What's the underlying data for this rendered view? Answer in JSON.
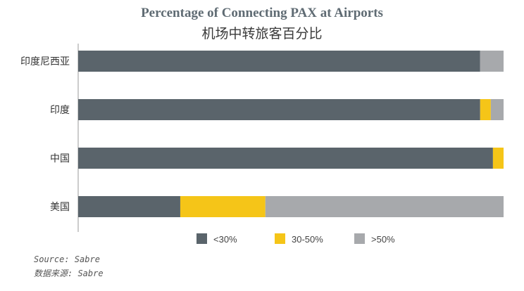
{
  "chart_data": {
    "type": "bar",
    "orientation": "horizontal",
    "stacked": true,
    "title": "Percentage of Connecting PAX at Airports",
    "subtitle": "机场中转旅客百分比",
    "categories": [
      "印度尼西亚",
      "印度",
      "中国",
      "美国"
    ],
    "series": [
      {
        "name": "<30%",
        "color": "#5a646b",
        "values": [
          94.5,
          94.5,
          97.5,
          24
        ]
      },
      {
        "name": "30-50%",
        "color": "#f5c518",
        "values": [
          0,
          2.5,
          2.5,
          20
        ]
      },
      {
        "name": ">50%",
        "color": "#a7a9ac",
        "values": [
          5.5,
          3,
          0,
          56
        ]
      }
    ],
    "xlim": [
      0,
      100
    ],
    "grid": false,
    "legend_position": "bottom"
  },
  "source_en": "Source: Sabre",
  "source_zh": "数据来源: Sabre"
}
